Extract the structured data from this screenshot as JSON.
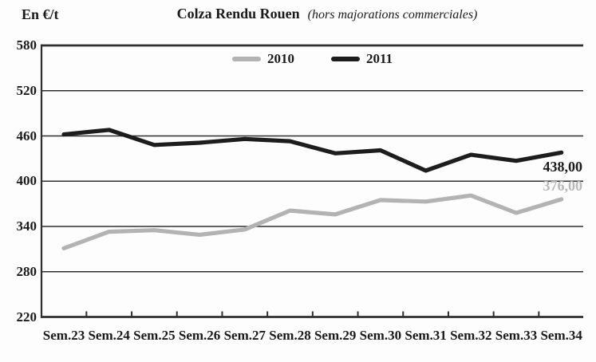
{
  "chart": {
    "unit_label": "En €/t",
    "title": "Colza Rendu Rouen",
    "subtitle": "(hors majorations commerciales)"
  },
  "chart_data": {
    "type": "line",
    "title": "Colza Rendu Rouen (hors majorations commerciales)",
    "ylabel": "En €/t",
    "xlabel": "",
    "ylim": [
      220,
      580
    ],
    "y_ticks": [
      580,
      520,
      460,
      400,
      340,
      280,
      220
    ],
    "grid": "horizontal",
    "legend_position": "top-center-inside",
    "categories": [
      "Sem.23",
      "Sem.24",
      "Sem.25",
      "Sem.26",
      "Sem.27",
      "Sem.28",
      "Sem.29",
      "Sem.30",
      "Sem.31",
      "Sem.32",
      "Sem.33",
      "Sem.34"
    ],
    "series": [
      {
        "name": "2010",
        "color": "#b3b3b3",
        "values": [
          311,
          333,
          335,
          329,
          336,
          361,
          356,
          375,
          373,
          381,
          358,
          376
        ],
        "end_label": "376,00",
        "end_label_side": "above"
      },
      {
        "name": "2011",
        "color": "#1d1d1d",
        "values": [
          462,
          468,
          448,
          451,
          456,
          453,
          437,
          441,
          414,
          435,
          427,
          438
        ],
        "end_label": "438,00",
        "end_label_side": "below"
      }
    ],
    "colors": {
      "grid": "#2e2e2e",
      "text": "#1a1a1a",
      "background": "#fdfdfd"
    }
  }
}
